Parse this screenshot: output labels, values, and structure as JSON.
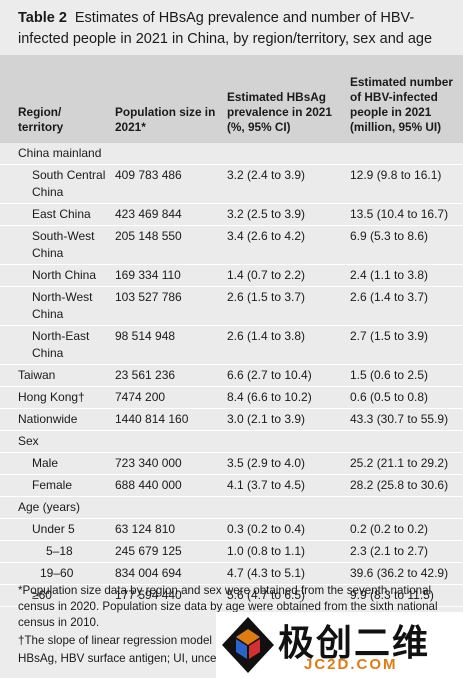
{
  "title": {
    "label": "Table 2",
    "text": "Estimates of HBsAg prevalence and number of HBV-infected people in 2021 in China, by region/territory, sex and age"
  },
  "table": {
    "header": [
      "Region/ territory",
      "Population size in 2021*",
      "Estimated HBsAg prevalence in 2021 (%, 95% CI)",
      "Estimated number of HBV-infected people in 2021 (million, 95% UI)"
    ],
    "rows": [
      [
        "China mainland"
      ],
      [
        "South Central China",
        "409 783 486",
        "3.2 (2.4 to 3.9)",
        "12.9 (9.8 to 16.1)"
      ],
      [
        "East China",
        "423 469 844",
        "3.2 (2.5 to 3.9)",
        "13.5 (10.4 to 16.7)"
      ],
      [
        "South-West China",
        "205 148 550",
        "3.4 (2.6 to 4.2)",
        "6.9 (5.3 to 8.6)"
      ],
      [
        "North China",
        "169 334 110",
        "1.4 (0.7 to 2.2)",
        "2.4 (1.1 to 3.8)"
      ],
      [
        "North-West China",
        "103 527 786",
        "2.6 (1.5 to 3.7)",
        "2.6 (1.4 to 3.7)"
      ],
      [
        "North-East China",
        "98 514 948",
        "2.6 (1.4 to 3.8)",
        "2.7 (1.5 to 3.9)"
      ],
      [
        "Taiwan",
        "23 561 236",
        "6.6 (2.7 to 10.4)",
        "1.5 (0.6 to 2.5)"
      ],
      [
        "Hong Kong†",
        "7474 200",
        "8.4 (6.6 to 10.2)",
        "0.6 (0.5 to 0.8)"
      ],
      [
        "Nationwide",
        "1440 814 160",
        "3.0 (2.1 to 3.9)",
        "43.3 (30.7 to 55.9)"
      ],
      [
        "Sex"
      ],
      [
        "Male",
        "723 340 000",
        "3.5 (2.9 to 4.0)",
        "25.2 (21.1 to 29.2)"
      ],
      [
        "Female",
        "688 440 000",
        "4.1 (3.7 to 4.5)",
        "28.2 (25.8 to 30.6)"
      ],
      [
        "Age (years)"
      ],
      [
        "Under 5",
        "63 124 810",
        "0.3 (0.2 to 0.4)",
        "0.2 (0.2 to 0.2)"
      ],
      [
        "5–18",
        "245 679 125",
        "1.0 (0.8 to 1.1)",
        "2.3 (2.1 to 2.7)"
      ],
      [
        "19–60",
        "834 004 694",
        "4.7 (4.3 to 5.1)",
        "39.6 (36.2 to 42.9)"
      ],
      [
        "≥60",
        "177 594 440",
        "5.6 (4.7 to 6.5)",
        "9.9 (8.3 to 11.5)"
      ]
    ]
  },
  "footnotes": [
    "*Population size data by region and sex were obtained from the seventh national census in 2020. Population size data by age were obtained from the sixth national census in 2010.",
    "†The slope of linear regression model",
    "HBsAg, HBV surface antigen; UI, uncer"
  ],
  "watermark": {
    "name": "极创二维",
    "site": "JC2D.COM"
  }
}
